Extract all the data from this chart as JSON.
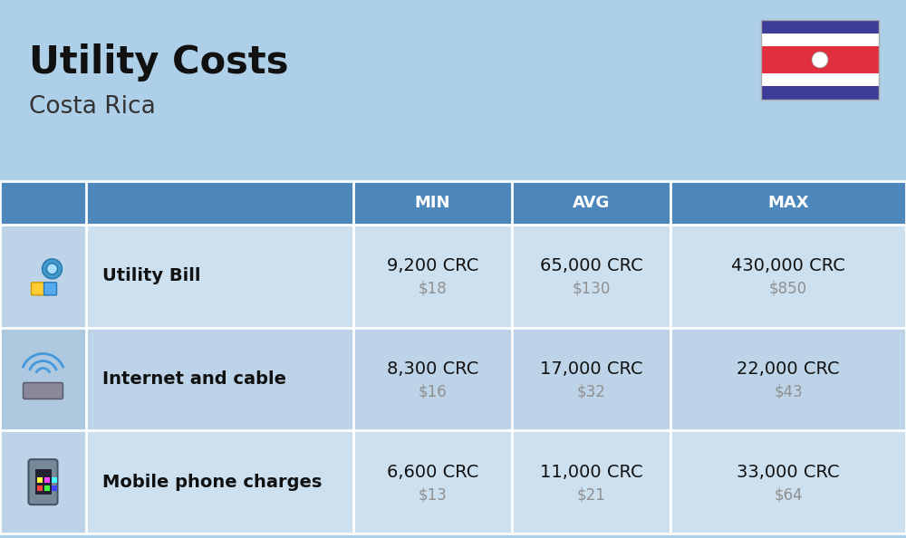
{
  "title": "Utility Costs",
  "subtitle": "Costa Rica",
  "background_color": "#aecfe8",
  "header_bg_color": "#4d87bb",
  "header_text_color": "#ffffff",
  "row_bg_even": "#cce0f0",
  "row_bg_odd": "#bdd4e8",
  "icon_col_bg_even": "#bdd4e8",
  "icon_col_bg_odd": "#aec8e0",
  "border_color": "#ffffff",
  "col_headers": [
    "MIN",
    "AVG",
    "MAX"
  ],
  "rows": [
    {
      "label": "Utility Bill",
      "min_crc": "9,200 CRC",
      "min_usd": "$18",
      "avg_crc": "65,000 CRC",
      "avg_usd": "$130",
      "max_crc": "430,000 CRC",
      "max_usd": "$850"
    },
    {
      "label": "Internet and cable",
      "min_crc": "8,300 CRC",
      "min_usd": "$16",
      "avg_crc": "17,000 CRC",
      "avg_usd": "$32",
      "max_crc": "22,000 CRC",
      "max_usd": "$43"
    },
    {
      "label": "Mobile phone charges",
      "min_crc": "6,600 CRC",
      "min_usd": "$13",
      "avg_crc": "11,000 CRC",
      "avg_usd": "$21",
      "max_crc": "33,000 CRC",
      "max_usd": "$64"
    }
  ],
  "flag": {
    "blue": "#3d3d99",
    "white": "#ffffff",
    "red": "#e03040"
  },
  "title_fontsize": 30,
  "subtitle_fontsize": 19,
  "header_fontsize": 13,
  "label_fontsize": 14,
  "value_fontsize": 14,
  "usd_fontsize": 12,
  "usd_color": "#909090"
}
